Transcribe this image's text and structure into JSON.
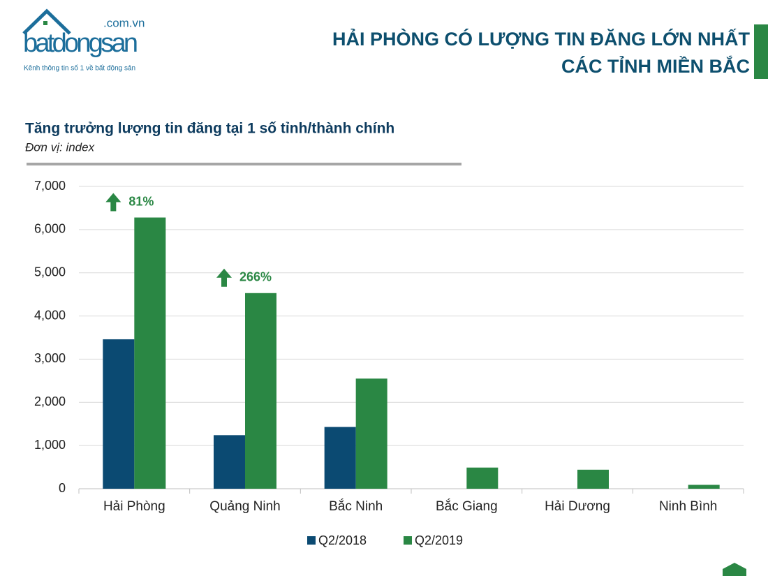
{
  "header": {
    "title_lines": [
      "HẢI PHÒNG CÓ LƯỢNG TIN ĐĂNG LỚN NHẤT",
      "CÁC TỈNH MIỀN BẮC"
    ]
  },
  "logo": {
    "name": "batdongsan",
    "domain": ".com.vn",
    "tagline": "Kênh thông tin số 1 về bất động sản"
  },
  "chart_data": {
    "type": "bar",
    "title": "Tăng trưởng lượng tin đăng tại 1 số tỉnh/thành chính",
    "subtitle": "Đơn vị: index",
    "categories": [
      "Hải Phòng",
      "Quảng Ninh",
      "Bắc Ninh",
      "Bắc Giang",
      "Hải Dương",
      "Ninh Bình"
    ],
    "series": [
      {
        "name": "Q2/2018",
        "color": "#0b4a72",
        "values": [
          3460,
          1240,
          1430,
          null,
          null,
          null
        ]
      },
      {
        "name": "Q2/2019",
        "color": "#2a8744",
        "values": [
          6280,
          4530,
          2550,
          490,
          440,
          90
        ]
      }
    ],
    "annotations": [
      "81%",
      "266%"
    ],
    "ylim": [
      0,
      7000
    ],
    "yticks": [
      0,
      {
        "value": 1000,
        "label": "1,000"
      },
      {
        "value": 2000,
        "label": "2,000"
      },
      {
        "value": 3000,
        "label": "3,000"
      },
      {
        "value": 4000,
        "label": "4,000"
      },
      {
        "value": 5000,
        "label": "5,000"
      },
      {
        "value": 6000,
        "label": "6,000"
      },
      {
        "value": 7000,
        "label": "7,000"
      }
    ],
    "grid": true,
    "legend": "bottom"
  }
}
